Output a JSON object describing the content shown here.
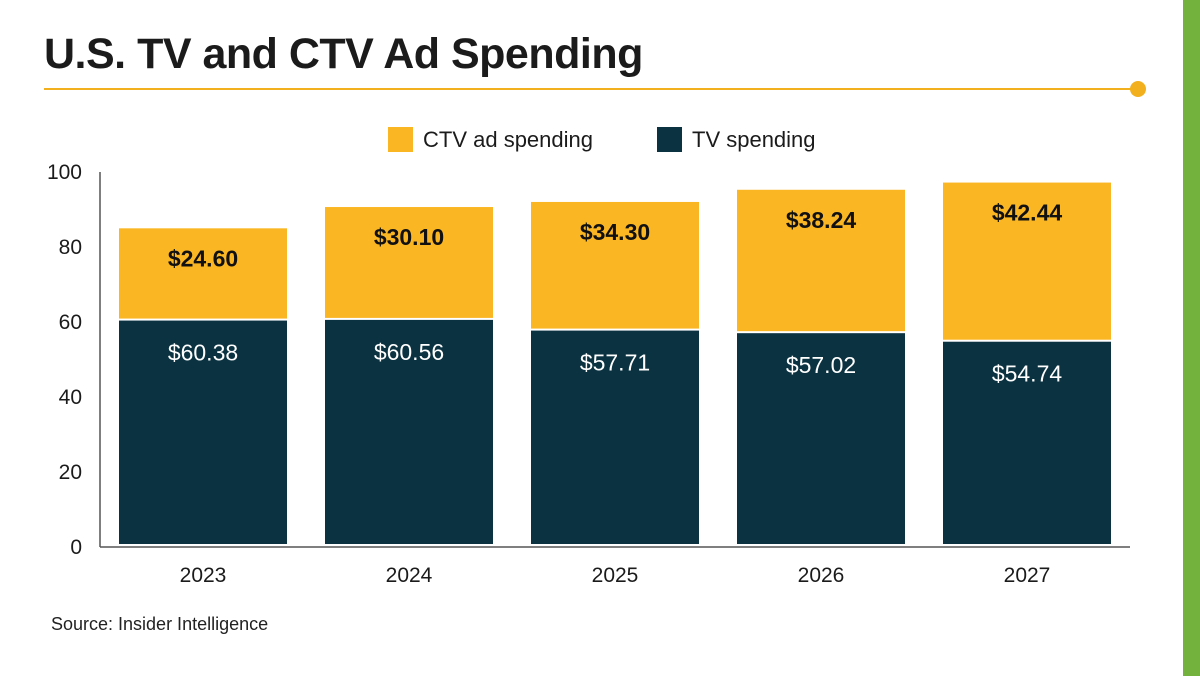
{
  "title": "U.S. TV and CTV Ad Spending",
  "source": "Source: Insider Intelligence",
  "colors": {
    "ctv": "#fbb624",
    "tv": "#0b3241",
    "accent_rule": "#f2b01e",
    "side_bar": "#74b23e"
  },
  "chart_data": {
    "type": "bar",
    "stacked": true,
    "categories": [
      "2023",
      "2024",
      "2025",
      "2026",
      "2027"
    ],
    "series": [
      {
        "name": "TV spending",
        "values": [
          60.38,
          60.56,
          57.71,
          57.02,
          54.74
        ],
        "labels": [
          "$60.38",
          "$60.56",
          "$57.71",
          "$57.02",
          "$54.74"
        ]
      },
      {
        "name": "CTV ad spending",
        "values": [
          24.6,
          30.1,
          34.3,
          38.24,
          42.44
        ],
        "labels": [
          "$24.60",
          "$30.10",
          "$34.30",
          "$38.24",
          "$42.44"
        ]
      }
    ],
    "legend_order": [
      "CTV ad spending",
      "TV spending"
    ],
    "legend": "top-center",
    "yticks": [
      "0",
      "20",
      "40",
      "60",
      "80",
      "100"
    ],
    "ylim": [
      0,
      100
    ],
    "grid": false
  }
}
